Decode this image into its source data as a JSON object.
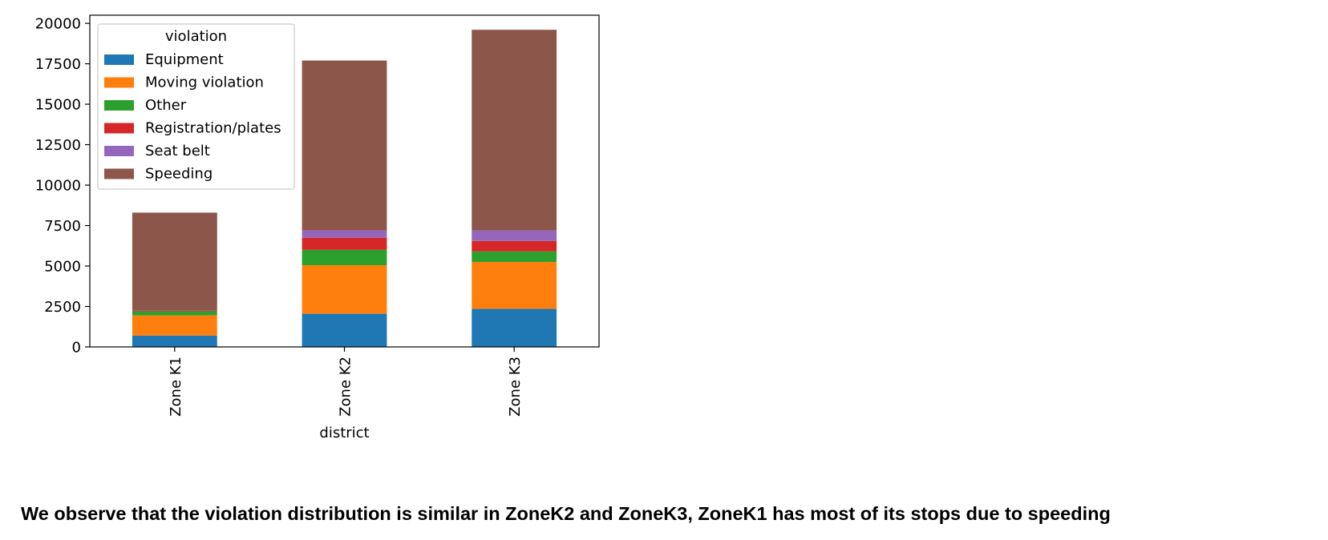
{
  "chart_data": {
    "type": "bar",
    "stacked": true,
    "categories": [
      "Zone K1",
      "Zone K2",
      "Zone K3"
    ],
    "xlabel": "district",
    "ylabel": "",
    "ylim": [
      0,
      20500
    ],
    "yticks": [
      0,
      2500,
      5000,
      7500,
      10000,
      12500,
      15000,
      17500,
      20000
    ],
    "legend": {
      "title": "violation",
      "placement": "top-left"
    },
    "grid": false,
    "series": [
      {
        "name": "Equipment",
        "color": "#1f77b4",
        "values": [
          700,
          2050,
          2350
        ]
      },
      {
        "name": "Moving violation",
        "color": "#ff7f0e",
        "values": [
          1250,
          3000,
          2900
        ]
      },
      {
        "name": "Other",
        "color": "#2ca02c",
        "values": [
          250,
          950,
          650
        ]
      },
      {
        "name": "Registration/plates",
        "color": "#d62728",
        "values": [
          30,
          750,
          650
        ]
      },
      {
        "name": "Seat belt",
        "color": "#9467bd",
        "values": [
          20,
          450,
          650
        ]
      },
      {
        "name": "Speeding",
        "color": "#8c564b",
        "values": [
          6050,
          10500,
          12400
        ]
      }
    ]
  },
  "caption": "We observe that the violation distribution is similar in ZoneK2 and ZoneK3, ZoneK1 has most of its stops due to speeding"
}
